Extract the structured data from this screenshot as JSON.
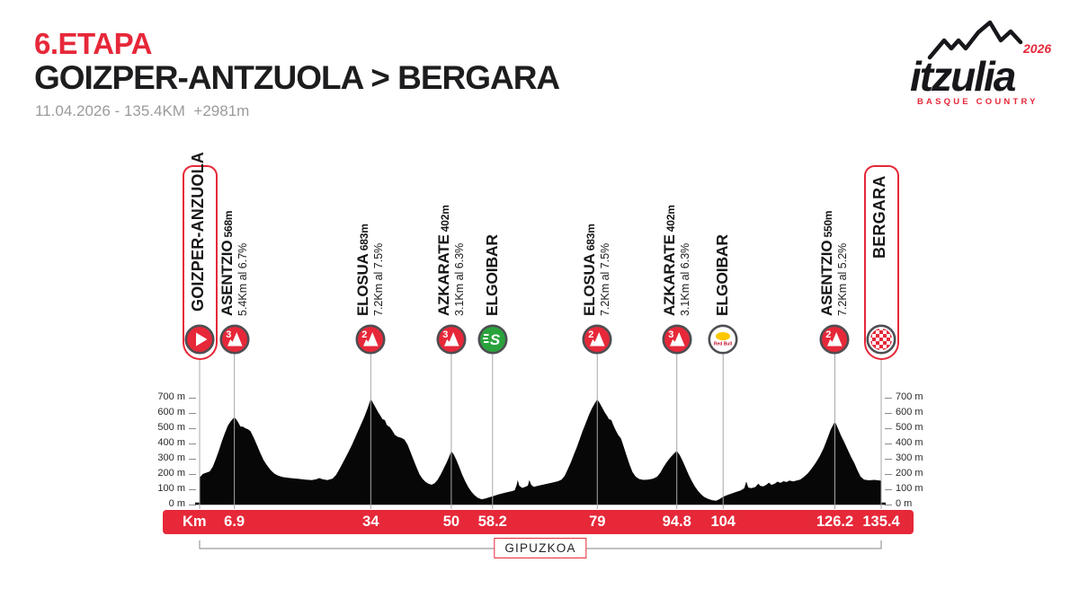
{
  "header": {
    "stage_label": "6.ETAPA",
    "route": "GOIZPER-ANTZUOLA > BERGARA",
    "meta": "11.04.2026 - 135.4KM  +2981m"
  },
  "logo": {
    "wordmark": "itzulia",
    "year": "2026",
    "subtitle": "BASQUE COUNTRY"
  },
  "colors": {
    "red": "#e62839",
    "profile_black": "#070707",
    "ring_gray": "#4d4e52",
    "sprint_green": "#2aa33c",
    "redbull_yellow": "#fdc800",
    "redbull_red": "#c8102e",
    "line_gray": "#a8a8a8",
    "meta_gray": "#9b9b9b"
  },
  "chart_data": {
    "type": "area",
    "title": "Stage 6 elevation profile",
    "x_unit_label": "Km",
    "y_unit": "m",
    "xlim": [
      0,
      135.4
    ],
    "ylim": [
      0,
      700
    ],
    "y_ticks": [
      0,
      100,
      200,
      300,
      400,
      500,
      600,
      700
    ],
    "km_ticks": [
      "6.9",
      "34",
      "50",
      "58.2",
      "79",
      "94.8",
      "104",
      "126.2",
      "135.4"
    ],
    "region_label": "GIPUZKOA",
    "markers": [
      {
        "km": 0,
        "kind": "start",
        "label": "GOIZPER-ANZUOLA"
      },
      {
        "km": 6.9,
        "kind": "climb",
        "category": "3",
        "name": "ASENTZIO",
        "altitude": "568m",
        "detail": "5.4Km al 6.7%"
      },
      {
        "km": 34,
        "kind": "climb",
        "category": "2",
        "name": "ELOSUA",
        "altitude": "683m",
        "detail": "7.2Km al 7.5%"
      },
      {
        "km": 50,
        "kind": "climb",
        "category": "3",
        "name": "AZKARATE",
        "altitude": "402m",
        "detail": "3.1Km al 6.3%"
      },
      {
        "km": 58.2,
        "kind": "sprint",
        "name": "ELGOIBAR"
      },
      {
        "km": 79,
        "kind": "climb",
        "category": "2",
        "name": "ELOSUA",
        "altitude": "683m",
        "detail": "7.2Km al 7.5%"
      },
      {
        "km": 94.8,
        "kind": "climb",
        "category": "3",
        "name": "AZKARATE",
        "altitude": "402m",
        "detail": "3.1Km al 6.3%"
      },
      {
        "km": 104,
        "kind": "redbull",
        "name": "ELGOIBAR"
      },
      {
        "km": 126.2,
        "kind": "climb",
        "category": "2",
        "name": "ASENTZIO",
        "altitude": "550m",
        "detail": "7.2Km al 5.2%"
      },
      {
        "km": 135.4,
        "kind": "finish",
        "label": "BERGARA"
      }
    ],
    "profile": [
      [
        0,
        165
      ],
      [
        0.6,
        188
      ],
      [
        1.2,
        196
      ],
      [
        2,
        205
      ],
      [
        2.6,
        235
      ],
      [
        3.2,
        285
      ],
      [
        3.8,
        340
      ],
      [
        4.4,
        400
      ],
      [
        5,
        455
      ],
      [
        5.6,
        505
      ],
      [
        6.2,
        535
      ],
      [
        6.9,
        560
      ],
      [
        7.3,
        545
      ],
      [
        7.7,
        525
      ],
      [
        8.1,
        500
      ],
      [
        8.6,
        498
      ],
      [
        9.1,
        488
      ],
      [
        9.6,
        482
      ],
      [
        10.1,
        470
      ],
      [
        10.7,
        430
      ],
      [
        11.3,
        385
      ],
      [
        12,
        330
      ],
      [
        12.7,
        280
      ],
      [
        13.4,
        245
      ],
      [
        14.1,
        215
      ],
      [
        14.8,
        192
      ],
      [
        15.6,
        178
      ],
      [
        16.5,
        168
      ],
      [
        18,
        162
      ],
      [
        19.5,
        157
      ],
      [
        21,
        152
      ],
      [
        22.3,
        149
      ],
      [
        23.2,
        154
      ],
      [
        23.8,
        162
      ],
      [
        24.4,
        154
      ],
      [
        25.4,
        149
      ],
      [
        26.4,
        158
      ],
      [
        27.1,
        182
      ],
      [
        27.9,
        228
      ],
      [
        28.7,
        278
      ],
      [
        29.5,
        328
      ],
      [
        30.3,
        382
      ],
      [
        31.1,
        442
      ],
      [
        31.9,
        502
      ],
      [
        32.7,
        562
      ],
      [
        33.4,
        622
      ],
      [
        34,
        680
      ],
      [
        34.5,
        652
      ],
      [
        35,
        622
      ],
      [
        35.5,
        592
      ],
      [
        36,
        566
      ],
      [
        36.3,
        548
      ],
      [
        36.8,
        542
      ],
      [
        37.2,
        508
      ],
      [
        37.8,
        496
      ],
      [
        38.3,
        472
      ],
      [
        38.8,
        444
      ],
      [
        39.4,
        432
      ],
      [
        40.1,
        425
      ],
      [
        40.7,
        414
      ],
      [
        41.3,
        382
      ],
      [
        41.9,
        332
      ],
      [
        42.5,
        282
      ],
      [
        43.1,
        232
      ],
      [
        43.7,
        186
      ],
      [
        44.3,
        156
      ],
      [
        44.9,
        136
      ],
      [
        45.5,
        124
      ],
      [
        46.1,
        118
      ],
      [
        46.7,
        128
      ],
      [
        47.3,
        152
      ],
      [
        47.9,
        186
      ],
      [
        48.5,
        226
      ],
      [
        49.1,
        266
      ],
      [
        49.6,
        305
      ],
      [
        50,
        338
      ],
      [
        50.5,
        315
      ],
      [
        51,
        282
      ],
      [
        51.6,
        232
      ],
      [
        52.2,
        182
      ],
      [
        52.8,
        138
      ],
      [
        53.4,
        102
      ],
      [
        54,
        72
      ],
      [
        54.6,
        50
      ],
      [
        55.2,
        34
      ],
      [
        56,
        23
      ],
      [
        56.8,
        28
      ],
      [
        57.6,
        37
      ],
      [
        58.2,
        42
      ],
      [
        59.2,
        53
      ],
      [
        60.2,
        62
      ],
      [
        61.2,
        70
      ],
      [
        62,
        76
      ],
      [
        62.6,
        82
      ],
      [
        63,
        118
      ],
      [
        63.2,
        148
      ],
      [
        63.5,
        112
      ],
      [
        64.1,
        97
      ],
      [
        64.7,
        104
      ],
      [
        65.2,
        112
      ],
      [
        65.5,
        148
      ],
      [
        65.9,
        116
      ],
      [
        66.4,
        104
      ],
      [
        67.2,
        111
      ],
      [
        68.2,
        118
      ],
      [
        69.2,
        126
      ],
      [
        70.2,
        133
      ],
      [
        71.2,
        141
      ],
      [
        71.9,
        151
      ],
      [
        72.5,
        176
      ],
      [
        73.1,
        216
      ],
      [
        73.7,
        261
      ],
      [
        74.3,
        311
      ],
      [
        74.9,
        361
      ],
      [
        75.5,
        416
      ],
      [
        76.1,
        471
      ],
      [
        76.7,
        521
      ],
      [
        77.3,
        571
      ],
      [
        77.9,
        616
      ],
      [
        78.5,
        651
      ],
      [
        79,
        678
      ],
      [
        79.5,
        651
      ],
      [
        80,
        621
      ],
      [
        80.5,
        591
      ],
      [
        81,
        566
      ],
      [
        81.3,
        548
      ],
      [
        81.8,
        542
      ],
      [
        82.2,
        507
      ],
      [
        82.7,
        472
      ],
      [
        83.2,
        442
      ],
      [
        83.7,
        421
      ],
      [
        84.2,
        372
      ],
      [
        84.8,
        312
      ],
      [
        85.4,
        252
      ],
      [
        86,
        202
      ],
      [
        86.6,
        172
      ],
      [
        87.3,
        156
      ],
      [
        88.1,
        150
      ],
      [
        89.1,
        152
      ],
      [
        90.1,
        158
      ],
      [
        90.9,
        171
      ],
      [
        91.5,
        196
      ],
      [
        92.1,
        231
      ],
      [
        92.8,
        266
      ],
      [
        93.5,
        296
      ],
      [
        94.2,
        321
      ],
      [
        94.8,
        340
      ],
      [
        95.4,
        311
      ],
      [
        96,
        271
      ],
      [
        96.6,
        226
      ],
      [
        97.2,
        181
      ],
      [
        97.8,
        141
      ],
      [
        98.4,
        106
      ],
      [
        99,
        79
      ],
      [
        99.6,
        56
      ],
      [
        100.2,
        39
      ],
      [
        101,
        26
      ],
      [
        101.8,
        17
      ],
      [
        102.6,
        13
      ],
      [
        103.3,
        24
      ],
      [
        104,
        40
      ],
      [
        104.9,
        52
      ],
      [
        105.8,
        62
      ],
      [
        106.7,
        72
      ],
      [
        107.5,
        81
      ],
      [
        108.2,
        95
      ],
      [
        108.6,
        140
      ],
      [
        109,
        100
      ],
      [
        109.6,
        96
      ],
      [
        110.4,
        103
      ],
      [
        111,
        125
      ],
      [
        111.4,
        110
      ],
      [
        112,
        107
      ],
      [
        112.6,
        118
      ],
      [
        113.1,
        132
      ],
      [
        113.6,
        117
      ],
      [
        114.2,
        124
      ],
      [
        114.8,
        138
      ],
      [
        115.4,
        130
      ],
      [
        116,
        141
      ],
      [
        116.6,
        136
      ],
      [
        117.2,
        146
      ],
      [
        117.9,
        140
      ],
      [
        118.6,
        146
      ],
      [
        119.3,
        152
      ],
      [
        120,
        168
      ],
      [
        120.8,
        192
      ],
      [
        121.6,
        224
      ],
      [
        122.4,
        262
      ],
      [
        123.2,
        306
      ],
      [
        124,
        360
      ],
      [
        124.7,
        420
      ],
      [
        125.4,
        482
      ],
      [
        126.2,
        532
      ],
      [
        126.8,
        488
      ],
      [
        127.4,
        442
      ],
      [
        128,
        402
      ],
      [
        128.7,
        352
      ],
      [
        129.4,
        302
      ],
      [
        130.1,
        258
      ],
      [
        130.7,
        212
      ],
      [
        131.3,
        172
      ],
      [
        132,
        152
      ],
      [
        133,
        147
      ],
      [
        134,
        150
      ],
      [
        135.4,
        145
      ]
    ]
  }
}
